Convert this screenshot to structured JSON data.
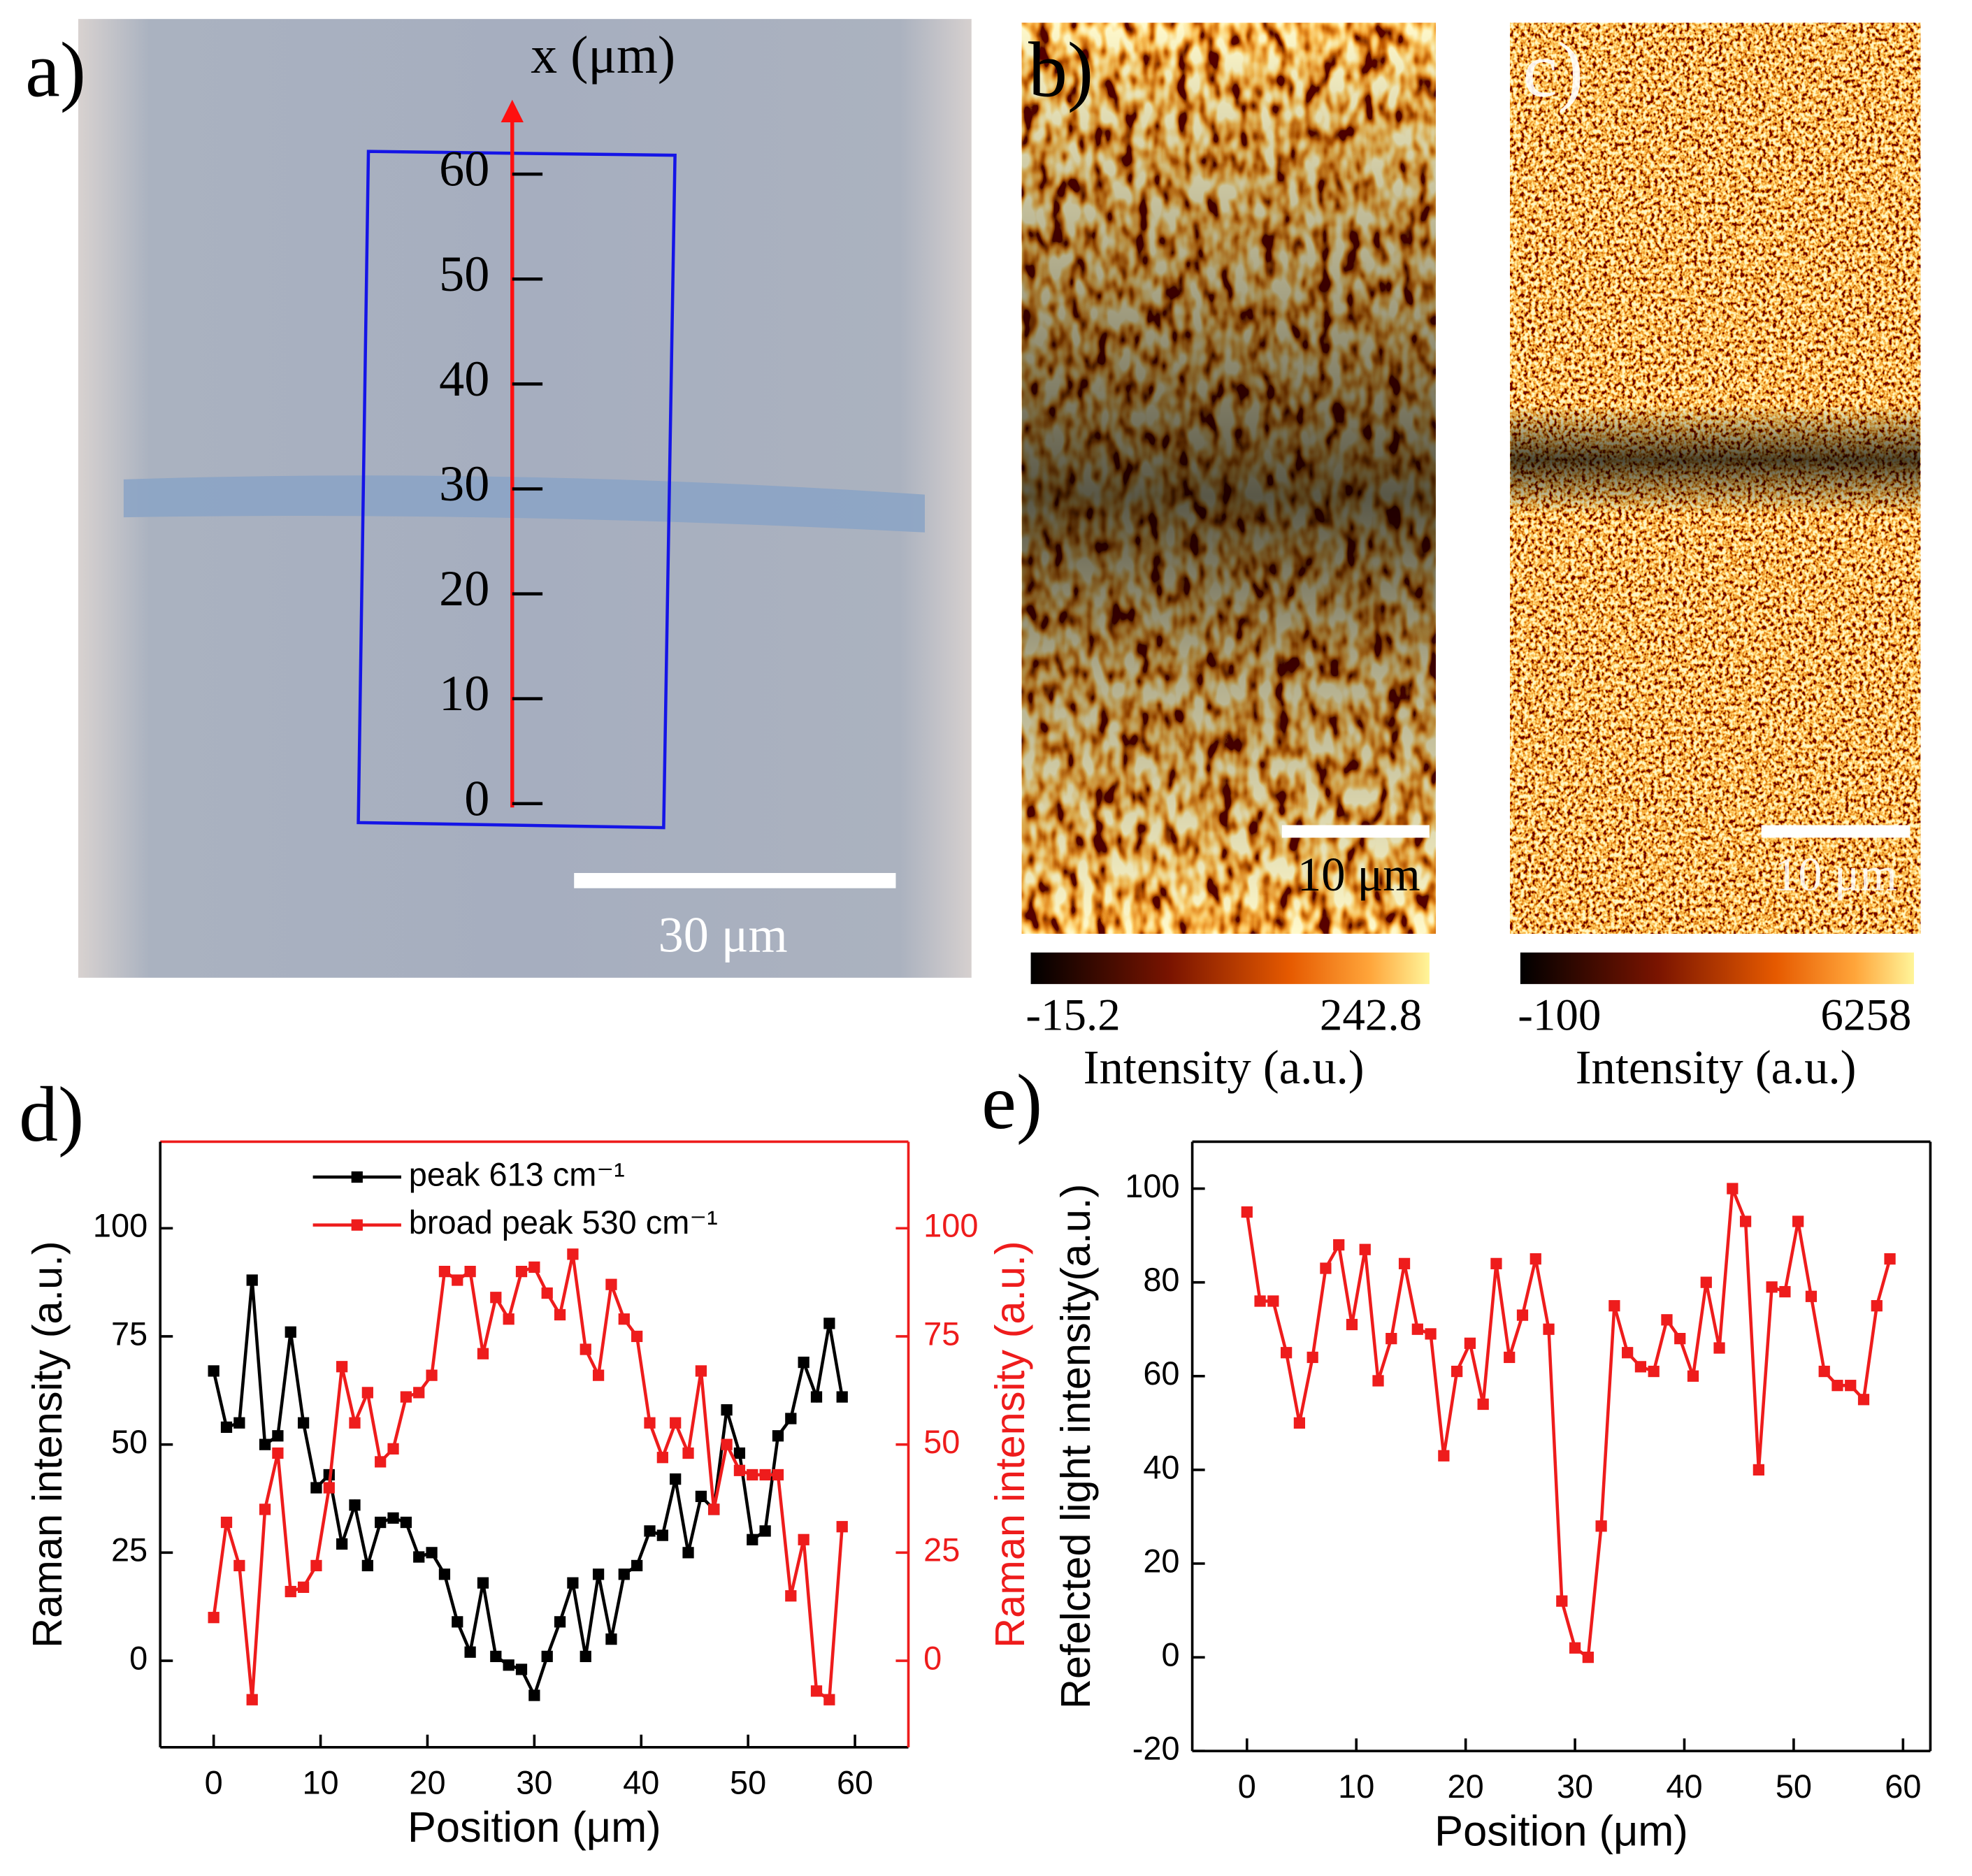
{
  "panel_a": {
    "label": "a)",
    "axis_title": "x (μm)",
    "ticks": [
      0,
      10,
      20,
      30,
      40,
      50,
      60
    ],
    "scale_bar": "30 μm"
  },
  "panel_b": {
    "label": "b)",
    "scale_bar": "10 μm",
    "colorbar": {
      "range": [
        -15.2,
        242.8
      ],
      "label": "Intensity (a.u.)"
    }
  },
  "panel_c": {
    "label": "c)",
    "scale_bar": "10 μm",
    "colorbar": {
      "range": [
        -100,
        6258
      ],
      "label": "Intensity (a.u.)"
    }
  },
  "chart_data": [
    {
      "type": "line",
      "panel_label": "d)",
      "xlabel": "Position (μm)",
      "ylabel": "Raman intensity (a.u.)",
      "y2label": "Raman intensity (a.u.)",
      "xlim": [
        -5,
        65
      ],
      "xticks": [
        0,
        10,
        20,
        30,
        40,
        50,
        60
      ],
      "ylim": [
        -20,
        120
      ],
      "yticks": [
        0,
        25,
        50,
        75,
        100
      ],
      "y2lim": [
        -20,
        120
      ],
      "y2ticks": [
        0,
        25,
        50,
        75,
        100
      ],
      "legend": "top",
      "x": [
        0,
        1.2,
        2.4,
        3.6,
        4.8,
        6,
        7.2,
        8.4,
        9.6,
        10.8,
        12,
        13.2,
        14.4,
        15.6,
        16.8,
        18,
        19.2,
        20.4,
        21.6,
        22.8,
        24,
        25.2,
        26.4,
        27.6,
        28.8,
        30,
        31.2,
        32.4,
        33.6,
        34.8,
        36,
        37.2,
        38.4,
        39.6,
        40.8,
        42,
        43.2,
        44.4,
        45.6,
        46.8,
        48,
        49.2,
        50.4,
        51.6,
        52.8,
        54,
        55.2,
        56.4,
        57.6,
        58.8
      ],
      "series": [
        {
          "name": "peak 613 cm⁻¹",
          "color": "#000000",
          "axis": "y",
          "values": [
            67,
            54,
            55,
            88,
            50,
            52,
            76,
            55,
            40,
            43,
            27,
            36,
            22,
            32,
            33,
            32,
            24,
            25,
            20,
            9,
            2,
            18,
            1,
            -1,
            -2,
            -8,
            1,
            9,
            18,
            1,
            20,
            5,
            20,
            22,
            30,
            29,
            42,
            25,
            38,
            35,
            58,
            48,
            28,
            30,
            52,
            56,
            69,
            61,
            78,
            61
          ]
        },
        {
          "name": "broad peak 530 cm⁻¹",
          "color": "#ee1c1c",
          "axis": "y2",
          "values": [
            10,
            32,
            22,
            -9,
            35,
            48,
            16,
            17,
            22,
            40,
            68,
            55,
            62,
            46,
            49,
            61,
            62,
            66,
            90,
            88,
            90,
            71,
            84,
            79,
            90,
            91,
            85,
            80,
            94,
            72,
            66,
            87,
            79,
            75,
            55,
            47,
            55,
            48,
            67,
            35,
            50,
            44,
            43,
            43,
            43,
            15,
            28,
            -7,
            -9,
            31
          ]
        }
      ]
    },
    {
      "type": "line",
      "panel_label": "e)",
      "xlabel": "Position (μm)",
      "ylabel": "Refelcted light intensity(a.u.)",
      "xlim": [
        -5,
        62.5
      ],
      "xticks": [
        0,
        10,
        20,
        30,
        40,
        50,
        60
      ],
      "ylim": [
        -20,
        110
      ],
      "yticks": [
        -20,
        0,
        20,
        40,
        60,
        80,
        100
      ],
      "x": [
        0,
        1.2,
        2.4,
        3.6,
        4.8,
        6,
        7.2,
        8.4,
        9.6,
        10.8,
        12,
        13.2,
        14.4,
        15.6,
        16.8,
        18,
        19.2,
        20.4,
        21.6,
        22.8,
        24,
        25.2,
        26.4,
        27.6,
        28.8,
        30,
        31.2,
        32.4,
        33.6,
        34.8,
        36,
        37.2,
        38.4,
        39.6,
        40.8,
        42,
        43.2,
        44.4,
        45.6,
        46.8,
        48,
        49.2,
        50.4,
        51.6,
        52.8,
        54,
        55.2,
        56.4,
        57.6,
        58.8
      ],
      "series": [
        {
          "color": "#ee1c1c",
          "values": [
            95,
            76,
            76,
            65,
            50,
            64,
            83,
            88,
            71,
            87,
            59,
            68,
            84,
            70,
            69,
            43,
            61,
            67,
            54,
            84,
            64,
            73,
            85,
            70,
            12,
            2,
            0,
            28,
            75,
            65,
            62,
            61,
            72,
            68,
            60,
            80,
            66,
            100,
            93,
            40,
            79,
            78,
            93,
            77,
            61,
            58,
            58,
            55,
            75,
            85
          ]
        }
      ]
    }
  ]
}
